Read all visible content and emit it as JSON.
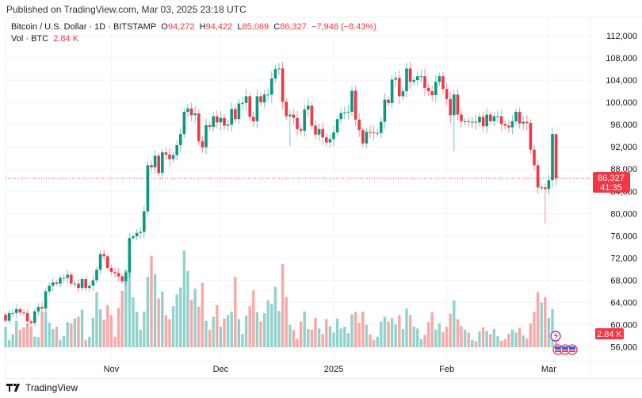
{
  "header": {
    "published": "Published on TradingView.com, Mar 03, 2025 23:18 UTC"
  },
  "legend": {
    "symbol": "Bitcoin / U.S. Dollar · 1D · BITSTAMP",
    "o_label": "O",
    "o": "94,272",
    "h_label": "H",
    "h": "94,422",
    "l_label": "L",
    "l": "85,069",
    "c_label": "C",
    "c": "86,327",
    "change": "−7,946 (−8.43%)",
    "vol_label": "Vol · BTC",
    "vol": "2.84 K"
  },
  "price_label": {
    "price": "86,327",
    "countdown": "41:35"
  },
  "volume_label": "2.84 K",
  "footer": {
    "brand": "TradingView"
  },
  "colors": {
    "up": "#089981",
    "down": "#f23645",
    "vol_up": "#92d2cc",
    "vol_down": "#f7a9a7"
  },
  "chart_data": {
    "type": "candlestick",
    "start_date": "2024-10-03",
    "ylim": [
      54000,
      114000
    ],
    "y_ticks": [
      "112,000",
      "108,000",
      "104,000",
      "100,000",
      "96,000",
      "92,000",
      "88,000",
      "84,000",
      "80,000",
      "76,000",
      "72,000",
      "68,000",
      "64,000",
      "60,000",
      "56,000"
    ],
    "x_ticks": [
      {
        "label": "Nov",
        "date": "2024-11-01"
      },
      {
        "label": "Dec",
        "date": "2024-12-01"
      },
      {
        "label": "2025",
        "date": "2025-01-01"
      },
      {
        "label": "Feb",
        "date": "2025-02-01"
      },
      {
        "label": "Mar",
        "date": "2025-03-01"
      }
    ],
    "first_open": 61800,
    "closes": [
      60.7,
      62.1,
      62.1,
      62.8,
      62.2,
      62.1,
      60.6,
      60.3,
      62.4,
      63.2,
      62.9,
      66.0,
      67.0,
      67.6,
      67.4,
      68.4,
      68.4,
      69.0,
      67.4,
      67.4,
      66.6,
      68.2,
      66.6,
      67.0,
      68.0,
      69.9,
      72.7,
      72.3,
      70.2,
      69.5,
      69.3,
      68.7,
      67.8,
      69.4,
      75.6,
      75.9,
      76.5,
      76.7,
      80.4,
      88.7,
      88.3,
      90.4,
      87.3,
      91.0,
      90.6,
      89.8,
      90.5,
      92.3,
      94.3,
      98.3,
      98.9,
      97.7,
      98.0,
      93.0,
      91.9,
      95.9,
      95.6,
      97.5,
      96.4,
      97.2,
      95.8,
      96.0,
      98.8,
      97.0,
      99.8,
      99.9,
      101.1,
      97.4,
      96.6,
      101.1,
      100.0,
      101.4,
      101.4,
      104.3,
      106.0,
      106.1,
      100.1,
      97.5,
      97.8,
      97.2,
      95.2,
      94.9,
      98.7,
      99.4,
      95.8,
      94.2,
      95.2,
      93.7,
      92.8,
      93.4,
      94.6,
      97.0,
      98.1,
      98.2,
      98.3,
      102.1,
      96.9,
      95.0,
      92.6,
      94.7,
      94.6,
      94.5,
      94.5,
      96.5,
      100.5,
      99.9,
      104.1,
      104.4,
      101.1,
      102.0,
      106.1,
      103.7,
      104.0,
      104.7,
      104.7,
      102.6,
      102.0,
      101.3,
      103.7,
      104.7,
      102.4,
      100.6,
      97.7,
      101.4,
      97.8,
      96.6,
      96.6,
      96.5,
      96.5,
      96.4,
      97.4,
      95.7,
      97.8,
      96.6,
      97.5,
      97.5,
      96.1,
      95.8,
      95.5,
      96.6,
      98.3,
      96.2,
      96.5,
      96.3,
      91.5,
      88.7,
      84.7,
      84.7,
      84.4,
      86.0,
      94.3,
      86.327
    ],
    "close_units": "thousand USD",
    "last_candle": {
      "open": 94272,
      "high": 94422,
      "low": 85069,
      "close": 86327
    },
    "volume_k": [
      3.5,
      1.2,
      2.2,
      4.5,
      3.0,
      3.4,
      4.0,
      3.6,
      1.8,
      1.7,
      6.0,
      6.1,
      4.2,
      3.1,
      3.5,
      1.2,
      1.9,
      4.3,
      4.1,
      4.9,
      5.2,
      6.4,
      1.2,
      1.8,
      5.0,
      9.4,
      6.5,
      4.7,
      7.2,
      5.5,
      1.8,
      6.7,
      9.6,
      13.1,
      14.5,
      8.5,
      6.0,
      3.0,
      6.1,
      12.0,
      15.6,
      12.5,
      8.3,
      9.5,
      5.5,
      4.8,
      7.0,
      9.0,
      10.2,
      16.5,
      13.0,
      8.1,
      10.0,
      6.9,
      11.0,
      4.5,
      3.0,
      5.2,
      7.2,
      3.5,
      4.9,
      5.5,
      6.1,
      12.0,
      4.8,
      2.3,
      5.4,
      7.0,
      9.7,
      6.0,
      4.4,
      5.8,
      8.0,
      7.4,
      10.3,
      6.2,
      14.2,
      8.6,
      3.8,
      2.9,
      1.5,
      4.4,
      6.1,
      3.1,
      3.0,
      5.0,
      3.2,
      2.3,
      4.8,
      3.6,
      2.5,
      4.9,
      3.2,
      3.5,
      2.4,
      5.6,
      6.0,
      4.2,
      6.1,
      3.8,
      2.2,
      1.2,
      1.8,
      4.4,
      5.2,
      4.4,
      5.0,
      3.9,
      5.5,
      3.1,
      6.6,
      5.5,
      3.5,
      3.2,
      1.4,
      2.1,
      4.3,
      6.0,
      3.0,
      4.1,
      2.6,
      3.5,
      5.7,
      8.0,
      4.8,
      3.6,
      3.0,
      2.5,
      1.2,
      1.0,
      2.7,
      3.4,
      2.8,
      2.2,
      3.1,
      1.9,
      1.1,
      1.4,
      2.3,
      3.0,
      2.5,
      3.3,
      2.0,
      1.5,
      4.1,
      6.0,
      9.4,
      7.6,
      8.6,
      5.0,
      6.5,
      2.84
    ],
    "notable_lows": {
      "2024-12-20": 92200,
      "2025-02-03": 91200,
      "2025-02-28": 78200
    },
    "current_price": 86327
  }
}
